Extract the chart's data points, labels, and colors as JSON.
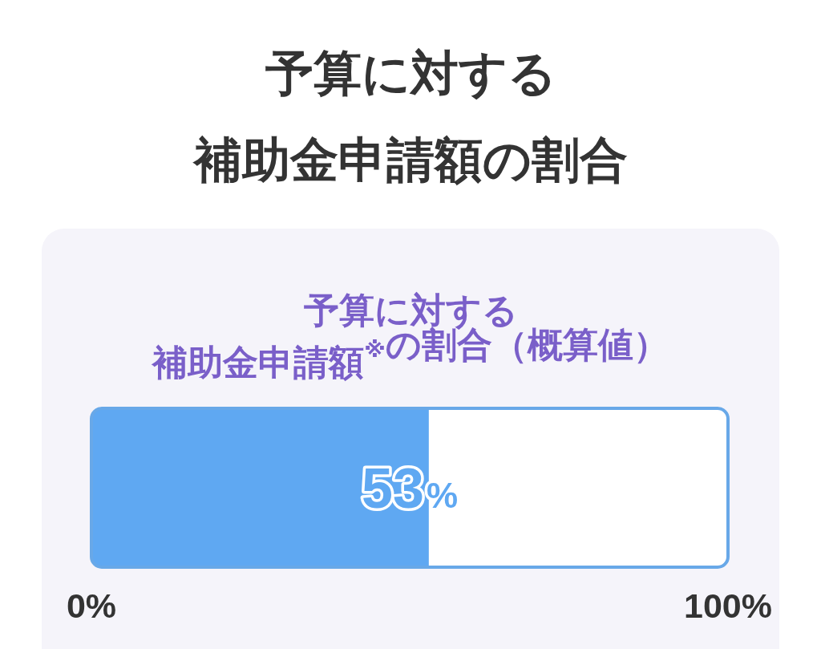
{
  "chart_data": {
    "type": "bar",
    "orientation": "horizontal",
    "title": "予算に対する補助金申請額の割合",
    "subtitle": "予算に対する補助金申請額$^{※}$の割合（概算値）",
    "categories": [
      null
    ],
    "values": [
      53
    ],
    "color": "#5fa8f2",
    "value_labels": [
      "53%"
    ],
    "xlim": [
      0,
      100
    ],
    "xticks": [
      {
        "value": 0,
        "label": "0%"
      },
      {
        "value": 100,
        "label": "100%"
      }
    ]
  }
}
